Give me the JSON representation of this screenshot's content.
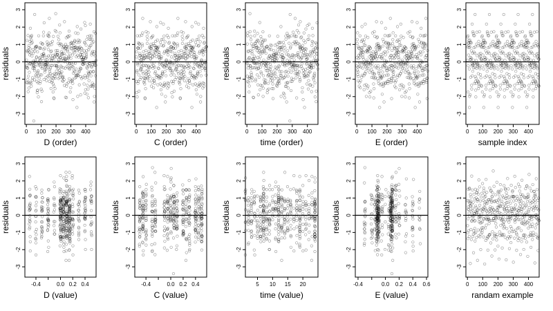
{
  "chart_data": [
    {
      "type": "scatter",
      "xlabel": "D (order)",
      "ylabel": "residuals",
      "xlim": [
        -10,
        470
      ],
      "ylim": [
        -3.6,
        3.4
      ],
      "xticks": [
        0,
        100,
        200,
        300,
        400
      ],
      "yticks": [
        -3,
        -2,
        -1,
        0,
        1,
        2,
        3
      ],
      "reference_line_y": 0,
      "points": "470 residuals plotted against row order (0–469); pattern description only"
    },
    {
      "type": "scatter",
      "xlabel": "C (order)",
      "ylabel": "residuals",
      "xlim": [
        -10,
        470
      ],
      "ylim": [
        -3.6,
        3.4
      ],
      "xticks": [
        0,
        100,
        200,
        300,
        400
      ],
      "yticks": [
        -3,
        -2,
        -1,
        0,
        1,
        2,
        3
      ],
      "reference_line_y": 0
    },
    {
      "type": "scatter",
      "xlabel": "time (order)",
      "ylabel": "residuals",
      "xlim": [
        -10,
        470
      ],
      "ylim": [
        -3.6,
        3.4
      ],
      "xticks": [
        0,
        100,
        200,
        300,
        400
      ],
      "yticks": [
        -3,
        -2,
        -1,
        0,
        1,
        2,
        3
      ],
      "reference_line_y": 0
    },
    {
      "type": "scatter",
      "xlabel": "E (order)",
      "ylabel": "residuals",
      "xlim": [
        -10,
        470
      ],
      "ylim": [
        -3.6,
        3.4
      ],
      "xticks": [
        0,
        100,
        200,
        300,
        400
      ],
      "yticks": [
        -3,
        -2,
        -1,
        0,
        1,
        2,
        3
      ],
      "reference_line_y": 0
    },
    {
      "type": "scatter",
      "xlabel": "sample index",
      "ylabel": "residuals",
      "xlim": [
        -10,
        470
      ],
      "ylim": [
        -3.6,
        3.4
      ],
      "xticks": [
        0,
        100,
        200,
        300,
        400
      ],
      "yticks": [
        -3,
        -2,
        -1,
        0,
        1,
        2,
        3
      ],
      "reference_line_y": 0
    },
    {
      "type": "scatter",
      "xlabel": "D (value)",
      "ylabel": "residuals",
      "xlim": [
        -0.58,
        0.58
      ],
      "ylim": [
        -3.6,
        3.4
      ],
      "xticks": [
        -0.4,
        -0.2,
        0.0,
        0.2,
        0.4
      ],
      "xtick_labels": [
        "-0.4",
        "",
        "0.0",
        "0.2",
        "0.4"
      ],
      "yticks": [
        -3,
        -2,
        -1,
        0,
        1,
        2,
        3
      ],
      "reference_line_y": 0
    },
    {
      "type": "scatter",
      "xlabel": "C (value)",
      "ylabel": "residuals",
      "xlim": [
        -0.58,
        0.58
      ],
      "ylim": [
        -3.6,
        3.4
      ],
      "xticks": [
        -0.4,
        -0.2,
        0.0,
        0.2,
        0.4
      ],
      "xtick_labels": [
        "-0.4",
        "",
        "0.0",
        "0.2",
        "0.4"
      ],
      "yticks": [
        -3,
        -2,
        -1,
        0,
        1,
        2,
        3
      ],
      "reference_line_y": 0
    },
    {
      "type": "scatter",
      "xlabel": "time (value)",
      "ylabel": "residuals",
      "xlim": [
        1,
        25
      ],
      "ylim": [
        -3.6,
        3.4
      ],
      "xticks": [
        5,
        10,
        15,
        20
      ],
      "xtick_labels": [
        "5",
        "10",
        "15",
        "20"
      ],
      "yticks": [
        -3,
        -2,
        -1,
        0,
        1,
        2,
        3
      ],
      "reference_line_y": 0
    },
    {
      "type": "scatter",
      "xlabel": "E (value)",
      "ylabel": "residuals",
      "xlim": [
        -0.44,
        0.62
      ],
      "ylim": [
        -3.6,
        3.4
      ],
      "xticks": [
        -0.4,
        -0.2,
        0.0,
        0.2,
        0.4,
        0.6
      ],
      "xtick_labels": [
        "-0.4",
        "",
        "0.0",
        "0.2",
        "0.4",
        "0.6"
      ],
      "yticks": [
        -3,
        -2,
        -1,
        0,
        1,
        2,
        3
      ],
      "reference_line_y": 0
    },
    {
      "type": "scatter",
      "xlabel": "randam example",
      "ylabel": "residuals",
      "xlim": [
        -10,
        470
      ],
      "ylim": [
        -3.6,
        3.4
      ],
      "xticks": [
        0,
        100,
        200,
        300,
        400
      ],
      "yticks": [
        -3,
        -2,
        -1,
        0,
        1,
        2,
        3
      ],
      "reference_line_y": 0
    }
  ],
  "series_description": {
    "n_points_per_panel": 470,
    "distribution": "residuals approximately standard normal, clustered at discrete x-values in value panels"
  }
}
